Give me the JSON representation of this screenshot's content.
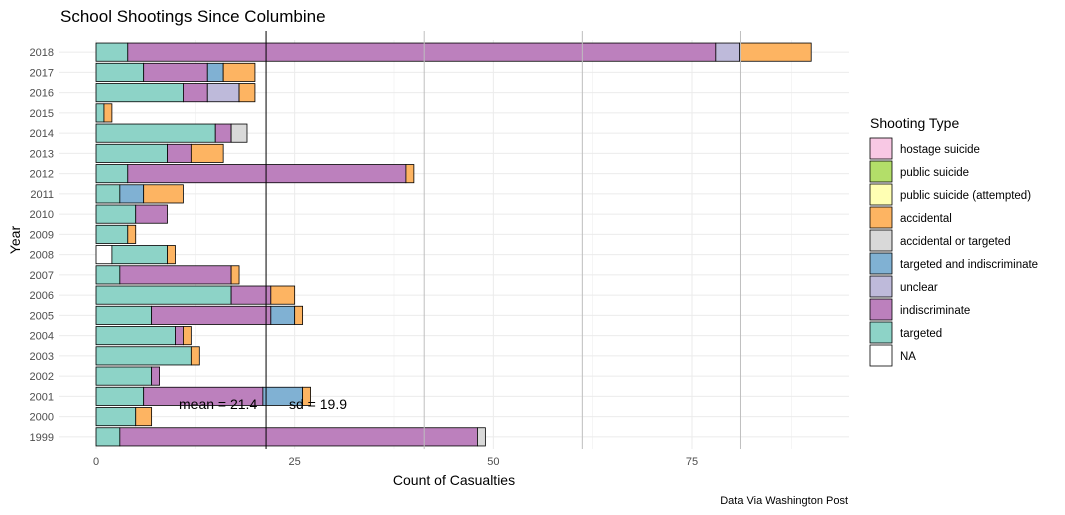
{
  "chart_data": {
    "type": "bar",
    "orientation": "horizontal",
    "stacked": true,
    "title": "School Shootings Since Columbine",
    "xlabel": "Count of Casualties",
    "ylabel": "Year",
    "caption": "Data Via Washington Post",
    "xlim": [
      0,
      95
    ],
    "xticks": [
      0,
      25,
      50,
      75
    ],
    "grid": true,
    "legend_title": "Shooting Type",
    "legend_position": "right",
    "categories": [
      "1999",
      "2000",
      "2001",
      "2002",
      "2003",
      "2004",
      "2005",
      "2006",
      "2007",
      "2008",
      "2009",
      "2010",
      "2011",
      "2012",
      "2013",
      "2014",
      "2015",
      "2016",
      "2017",
      "2018"
    ],
    "legend": [
      {
        "name": "hostage suicide",
        "color": "#F8C8E4"
      },
      {
        "name": "public suicide",
        "color": "#B3DE69"
      },
      {
        "name": "public suicide (attempted)",
        "color": "#FFFFB3"
      },
      {
        "name": "accidental",
        "color": "#FDB462"
      },
      {
        "name": "accidental or targeted",
        "color": "#D9D9D9"
      },
      {
        "name": "targeted and indiscriminate",
        "color": "#80B1D3"
      },
      {
        "name": "unclear",
        "color": "#BEBADA"
      },
      {
        "name": "indiscriminate",
        "color": "#BC80BD"
      },
      {
        "name": "targeted",
        "color": "#8DD3C7"
      },
      {
        "name": "NA",
        "color": "#FFFFFF"
      }
    ],
    "series": [
      {
        "name": "NA",
        "values": [
          0,
          0,
          0,
          0,
          0,
          0,
          0,
          0,
          0,
          2,
          0,
          0,
          0,
          0,
          0,
          0,
          0,
          0,
          0,
          0
        ]
      },
      {
        "name": "targeted",
        "values": [
          3,
          5,
          6,
          7,
          12,
          10,
          7,
          17,
          3,
          7,
          4,
          5,
          3,
          4,
          9,
          15,
          1,
          11,
          6,
          4
        ]
      },
      {
        "name": "indiscriminate",
        "values": [
          45,
          0,
          15,
          1,
          0,
          1,
          15,
          5,
          14,
          0,
          0,
          4,
          0,
          35,
          3,
          2,
          0,
          3,
          8,
          74
        ]
      },
      {
        "name": "unclear",
        "values": [
          0,
          0,
          0,
          0,
          0,
          0,
          0,
          0,
          0,
          0,
          0,
          0,
          0,
          0,
          0,
          0,
          0,
          4,
          0,
          3
        ]
      },
      {
        "name": "targeted and indiscriminate",
        "values": [
          0,
          0,
          5,
          0,
          0,
          0,
          3,
          0,
          0,
          0,
          0,
          0,
          3,
          0,
          0,
          0,
          0,
          0,
          2,
          0
        ]
      },
      {
        "name": "accidental or targeted",
        "values": [
          1,
          0,
          0,
          0,
          0,
          0,
          0,
          0,
          0,
          0,
          0,
          0,
          0,
          0,
          0,
          2,
          0,
          0,
          0,
          0
        ]
      },
      {
        "name": "accidental",
        "values": [
          0,
          2,
          1,
          0,
          1,
          1,
          1,
          3,
          1,
          1,
          1,
          0,
          5,
          1,
          4,
          0,
          1,
          2,
          4,
          9
        ]
      },
      {
        "name": "public suicide (attempted)",
        "values": [
          0,
          0,
          0,
          0,
          0,
          0,
          0,
          0,
          0,
          0,
          0,
          0,
          0,
          0,
          0,
          0,
          0,
          0,
          0,
          0
        ]
      },
      {
        "name": "public suicide",
        "values": [
          0,
          0,
          0,
          0,
          0,
          0,
          0,
          0,
          0,
          0,
          0,
          0,
          0,
          0,
          0,
          0,
          0,
          0,
          0,
          0
        ]
      },
      {
        "name": "hostage suicide",
        "values": [
          0,
          0,
          0,
          0,
          0,
          0,
          0,
          0,
          0,
          0,
          0,
          0,
          0,
          0,
          0,
          0,
          0,
          0,
          0,
          0
        ]
      }
    ],
    "reference_lines": [
      {
        "value": 21.4,
        "color": "#000000",
        "label": "mean = 21.4"
      },
      {
        "value": 41.3,
        "color": "#BEBEBE",
        "label": ""
      },
      {
        "value": 61.2,
        "color": "#BEBEBE",
        "label": ""
      },
      {
        "value": 81.1,
        "color": "#BEBEBE",
        "label": ""
      }
    ],
    "annotations": [
      "mean = 21.4",
      "sd = 19.9"
    ]
  }
}
